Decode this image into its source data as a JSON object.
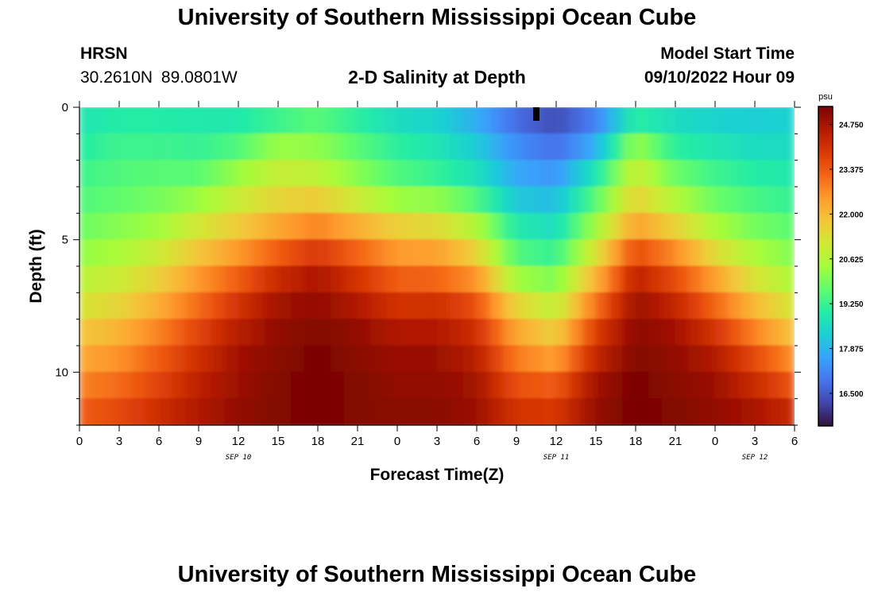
{
  "header": {
    "title": "University of Southern Mississippi Ocean Cube",
    "station": "HRSN",
    "coords": "30.2610N  89.0801W",
    "subtitle": "2-D Salinity at Depth",
    "model_start_label": "Model Start Time",
    "model_start_value": "09/10/2022 Hour 09",
    "footer_title": "University of Southern Mississippi Ocean Cube"
  },
  "colors": {
    "palette": [
      "#30123b",
      "#4145ab",
      "#4675ed",
      "#39a2fc",
      "#1bcfd4",
      "#24eca6",
      "#61fc6c",
      "#a4fc3b",
      "#d1e834",
      "#f3c63a",
      "#fe9b2d",
      "#f36315",
      "#d93806",
      "#b11901",
      "#7a0403"
    ]
  },
  "chart_data": {
    "type": "heatmap",
    "title": "2-D Salinity at Depth",
    "xlabel": "Forecast Time(Z)",
    "ylabel": "Depth (ft)",
    "x_ticks": [
      "0",
      "3",
      "6",
      "9",
      "12",
      "15",
      "18",
      "21",
      "0",
      "3",
      "6",
      "9",
      "12",
      "15",
      "18",
      "21",
      "0",
      "3",
      "6"
    ],
    "date_labels": [
      {
        "label": "SEP 10",
        "hour": 12
      },
      {
        "label": "SEP 11",
        "hour": 36
      },
      {
        "label": "SEP 12",
        "hour": 51
      }
    ],
    "x_range_hours": [
      0,
      54
    ],
    "y_ticks": [
      0,
      5,
      10
    ],
    "y_range_ft": [
      0,
      12
    ],
    "colorbar": {
      "unit": "psu",
      "min": 15.5,
      "max": 25.3,
      "ticks": [
        "24.750",
        "23.375",
        "22.000",
        "20.625",
        "19.250",
        "17.875",
        "16.500"
      ],
      "tick_values": [
        24.75,
        23.375,
        22.0,
        20.625,
        19.25,
        17.875,
        16.5
      ]
    },
    "depth_levels_ft": [
      0.5,
      1.5,
      2.5,
      3.5,
      4.5,
      5.5,
      6.5,
      7.5,
      8.5,
      9.5,
      10.5,
      11.5
    ],
    "time_hours": [
      0,
      3,
      6,
      9,
      12,
      15,
      18,
      21,
      24,
      27,
      30,
      33,
      36,
      39,
      42,
      45,
      48,
      51,
      54
    ],
    "salinity_psu": [
      [
        18.8,
        19.0,
        19.0,
        18.9,
        18.9,
        19.3,
        19.6,
        19.1,
        18.6,
        18.4,
        17.8,
        16.8,
        16.3,
        17.1,
        19.1,
        18.6,
        18.4,
        18.3,
        18.4
      ],
      [
        19.0,
        19.3,
        19.3,
        19.2,
        19.5,
        20.3,
        20.2,
        19.6,
        19.1,
        18.8,
        18.3,
        17.3,
        16.8,
        17.8,
        20.3,
        19.1,
        18.8,
        18.6,
        18.6
      ],
      [
        19.3,
        19.5,
        19.6,
        19.6,
        20.3,
        20.9,
        20.8,
        20.1,
        19.5,
        19.2,
        18.7,
        17.7,
        17.4,
        18.8,
        21.0,
        19.8,
        19.3,
        19.0,
        18.9
      ],
      [
        19.5,
        19.7,
        19.9,
        20.3,
        21.0,
        21.5,
        21.7,
        21.0,
        20.3,
        20.2,
        19.5,
        18.2,
        18.0,
        19.6,
        21.6,
        20.6,
        19.8,
        19.4,
        19.2
      ],
      [
        19.8,
        20.1,
        20.4,
        21.1,
        21.7,
        22.3,
        22.8,
        22.2,
        21.6,
        21.4,
        20.6,
        18.9,
        18.6,
        20.4,
        22.4,
        21.6,
        20.5,
        19.9,
        19.6
      ],
      [
        20.2,
        20.5,
        21.0,
        21.8,
        22.5,
        23.3,
        23.9,
        23.2,
        22.5,
        22.4,
        21.6,
        19.5,
        19.2,
        21.2,
        23.6,
        22.7,
        21.4,
        20.5,
        20.0
      ],
      [
        20.7,
        21.0,
        21.6,
        22.5,
        23.3,
        24.2,
        24.7,
        24.0,
        23.3,
        23.2,
        22.6,
        20.4,
        20.0,
        22.1,
        24.4,
        23.6,
        22.4,
        21.2,
        20.5
      ],
      [
        21.2,
        21.5,
        22.2,
        23.1,
        24.0,
        24.8,
        25.0,
        24.6,
        24.0,
        24.1,
        23.5,
        21.5,
        20.8,
        23.0,
        24.9,
        24.3,
        23.2,
        22.0,
        21.1
      ],
      [
        21.8,
        22.1,
        22.8,
        23.7,
        24.5,
        25.0,
        25.2,
        25.0,
        24.6,
        24.6,
        24.1,
        22.3,
        21.6,
        23.8,
        25.1,
        24.8,
        24.0,
        22.8,
        21.8
      ],
      [
        22.3,
        22.6,
        23.3,
        24.1,
        24.8,
        25.1,
        25.3,
        25.1,
        24.9,
        24.9,
        24.5,
        22.9,
        22.4,
        24.3,
        25.2,
        25.0,
        24.6,
        23.6,
        22.6
      ],
      [
        22.8,
        23.1,
        23.7,
        24.4,
        24.9,
        25.2,
        25.3,
        25.2,
        25.0,
        25.0,
        24.8,
        23.5,
        23.3,
        24.8,
        25.3,
        25.1,
        24.9,
        24.2,
        23.4
      ],
      [
        23.3,
        23.6,
        24.1,
        24.6,
        25.0,
        25.2,
        25.3,
        25.2,
        25.1,
        25.1,
        24.9,
        24.0,
        23.9,
        25.0,
        25.3,
        25.2,
        25.0,
        24.7,
        24.2
      ]
    ],
    "missing_marker": {
      "hour": 34.5,
      "depth_ft": 0.3
    }
  }
}
